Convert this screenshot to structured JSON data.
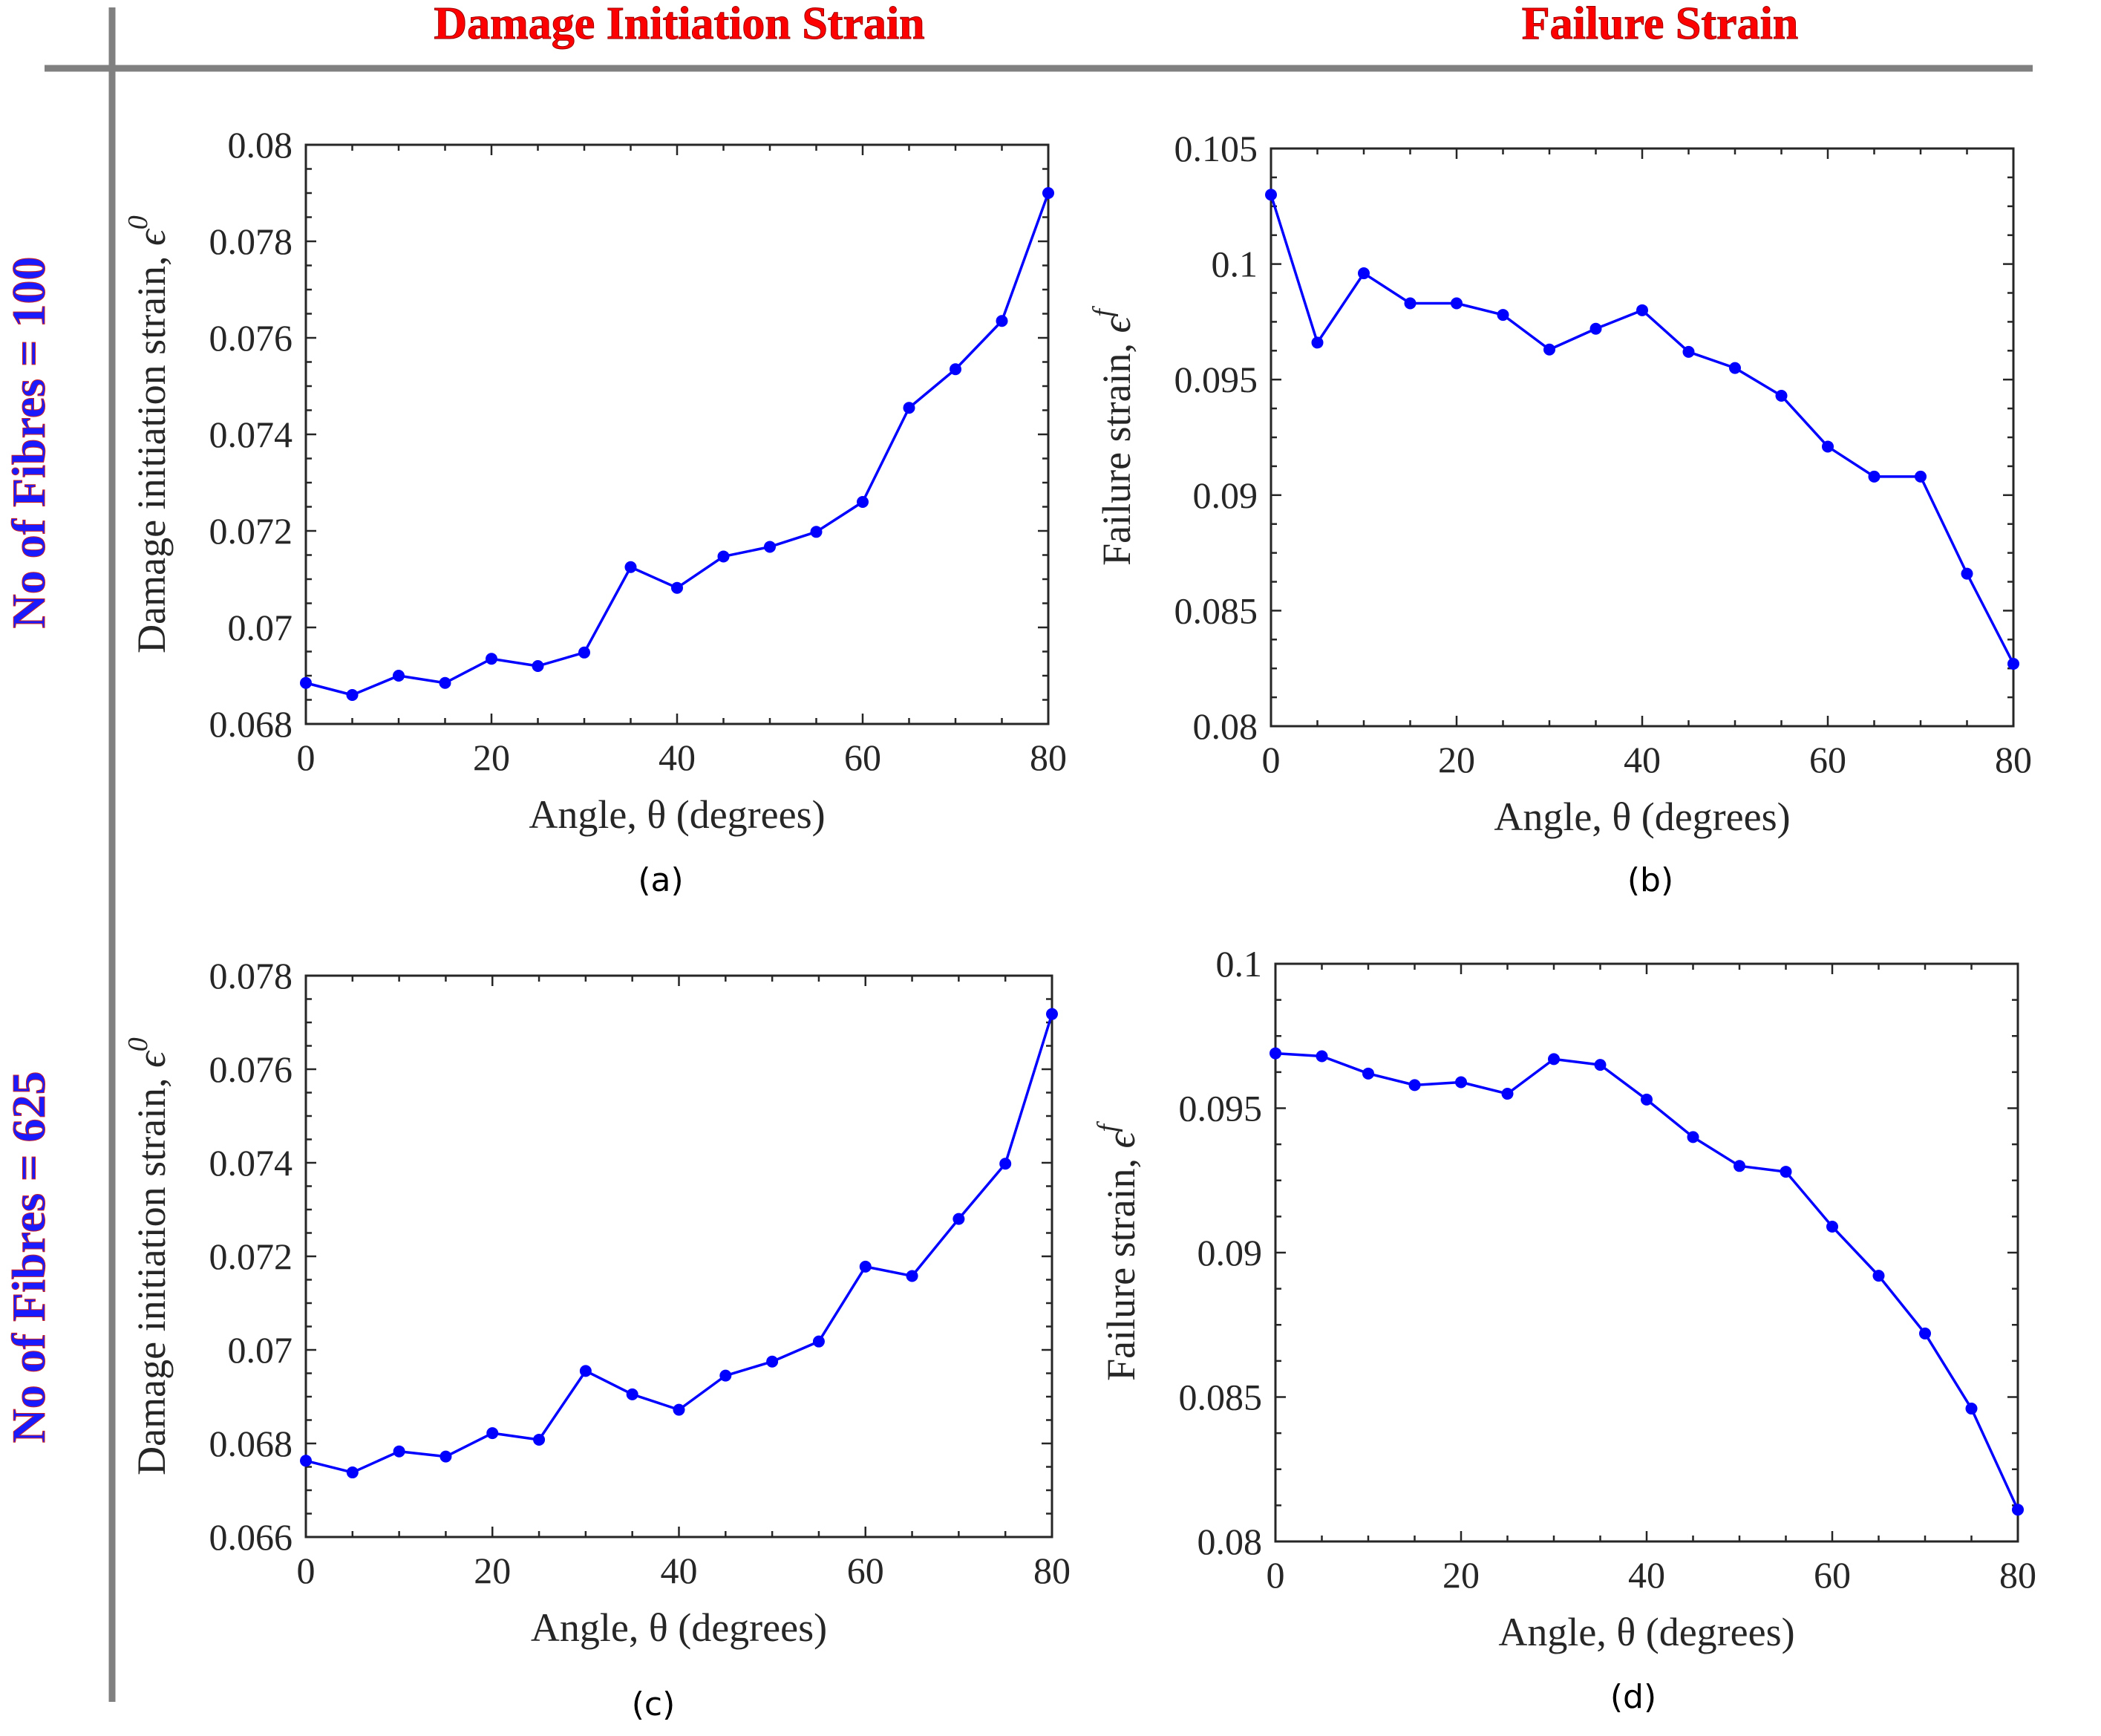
{
  "headers": {
    "col1": "Damage Initiation Strain",
    "col2": "Failure Strain",
    "row1": "No of Fibres = 100",
    "row2": "No of Fibres = 625"
  },
  "colors": {
    "header_red": "#ff0000",
    "header_blue": "#1a1aff",
    "series": "#0000ff",
    "axis": "#262626",
    "divider": "#808080"
  },
  "chart_data": [
    {
      "type": "line",
      "caption": "(a)",
      "xlabel": "Angle, θ (degrees)",
      "ylabel_text": "Damage initiation strain, ",
      "ylabel_symbol": "ϵ",
      "ylabel_sup": "0",
      "xlim": [
        0,
        80
      ],
      "ylim": [
        0.068,
        0.08
      ],
      "xticks": [
        0,
        20,
        40,
        60,
        80
      ],
      "xtick_labels": [
        "0",
        "20",
        "40",
        "60",
        "80"
      ],
      "yticks": [
        0.068,
        0.07,
        0.072,
        0.074,
        0.076,
        0.078,
        0.08
      ],
      "ytick_labels": [
        "0.068",
        "0.07",
        "0.072",
        "0.074",
        "0.076",
        "0.078",
        "0.08"
      ],
      "x": [
        0,
        5,
        10,
        15,
        20,
        25,
        30,
        35,
        40,
        45,
        50,
        55,
        60,
        65,
        70,
        75,
        80
      ],
      "y": [
        0.06885,
        0.0686,
        0.069,
        0.06885,
        0.06935,
        0.0692,
        0.06948,
        0.07125,
        0.07082,
        0.07147,
        0.07167,
        0.07198,
        0.0726,
        0.07455,
        0.07535,
        0.07635,
        0.079
      ]
    },
    {
      "type": "line",
      "caption": "(b)",
      "xlabel": "Angle, θ (degrees)",
      "ylabel_text": "Failure strain, ",
      "ylabel_symbol": "ϵ",
      "ylabel_sup": "f",
      "xlim": [
        0,
        80
      ],
      "ylim": [
        0.08,
        0.105
      ],
      "xticks": [
        0,
        20,
        40,
        60,
        80
      ],
      "xtick_labels": [
        "0",
        "20",
        "40",
        "60",
        "80"
      ],
      "yticks": [
        0.08,
        0.085,
        0.09,
        0.095,
        0.1,
        0.105
      ],
      "ytick_labels": [
        "0.08",
        "0.085",
        "0.09",
        "0.095",
        "0.1",
        "0.105"
      ],
      "x": [
        0,
        5,
        10,
        15,
        20,
        25,
        30,
        35,
        40,
        45,
        50,
        55,
        60,
        65,
        70,
        75,
        80
      ],
      "y": [
        0.103,
        0.0966,
        0.0996,
        0.0983,
        0.0983,
        0.0978,
        0.0963,
        0.0972,
        0.098,
        0.0962,
        0.0955,
        0.0943,
        0.0921,
        0.0908,
        0.0908,
        0.0866,
        0.0827
      ]
    },
    {
      "type": "line",
      "caption": "(c)",
      "xlabel": "Angle, θ (degrees)",
      "ylabel_text": "Damage initiation strain, ",
      "ylabel_symbol": "ϵ",
      "ylabel_sup": "0",
      "xlim": [
        0,
        80
      ],
      "ylim": [
        0.066,
        0.078
      ],
      "xticks": [
        0,
        20,
        40,
        60,
        80
      ],
      "xtick_labels": [
        "0",
        "20",
        "40",
        "60",
        "80"
      ],
      "yticks": [
        0.066,
        0.068,
        0.07,
        0.072,
        0.074,
        0.076,
        0.078
      ],
      "ytick_labels": [
        "0.066",
        "0.068",
        "0.07",
        "0.072",
        "0.074",
        "0.076",
        "0.078"
      ],
      "x": [
        0,
        5,
        10,
        15,
        20,
        25,
        30,
        35,
        40,
        45,
        50,
        55,
        60,
        65,
        70,
        75,
        80
      ],
      "y": [
        0.06763,
        0.06738,
        0.06783,
        0.06772,
        0.06822,
        0.06808,
        0.06955,
        0.06905,
        0.06872,
        0.06945,
        0.06975,
        0.07018,
        0.07178,
        0.07158,
        0.0728,
        0.07398,
        0.07718
      ]
    },
    {
      "type": "line",
      "caption": "(d)",
      "xlabel": "Angle, θ (degrees)",
      "ylabel_text": "Failure strain, ",
      "ylabel_symbol": "ϵ",
      "ylabel_sup": "f",
      "xlim": [
        0,
        80
      ],
      "ylim": [
        0.08,
        0.1
      ],
      "xticks": [
        0,
        20,
        40,
        60,
        80
      ],
      "xtick_labels": [
        "0",
        "20",
        "40",
        "60",
        "80"
      ],
      "yticks": [
        0.08,
        0.085,
        0.09,
        0.095,
        0.1
      ],
      "ytick_labels": [
        "0.08",
        "0.085",
        "0.09",
        "0.095",
        "0.1"
      ],
      "x": [
        0,
        5,
        10,
        15,
        20,
        25,
        30,
        35,
        40,
        45,
        50,
        55,
        60,
        65,
        70,
        75,
        80
      ],
      "y": [
        0.0969,
        0.0968,
        0.0962,
        0.0958,
        0.0959,
        0.0955,
        0.0967,
        0.0965,
        0.0953,
        0.094,
        0.093,
        0.0928,
        0.0909,
        0.0892,
        0.0872,
        0.0846,
        0.0811
      ]
    }
  ]
}
